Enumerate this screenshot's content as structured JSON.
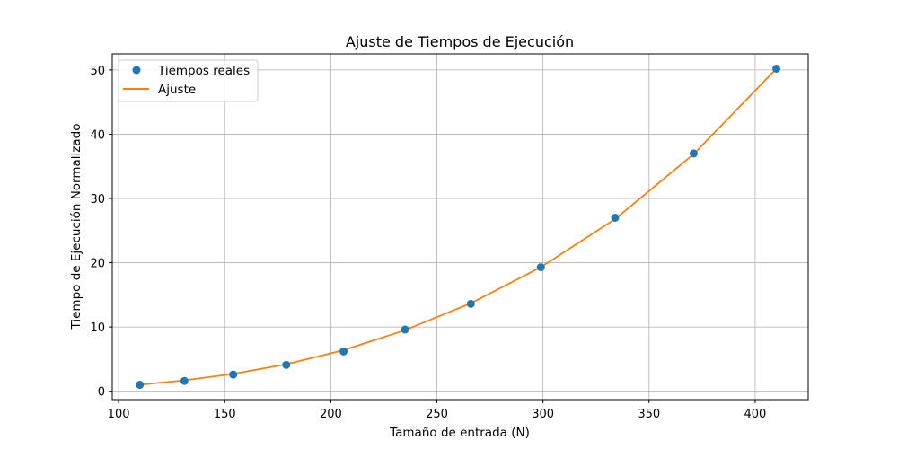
{
  "chart_data": {
    "type": "scatter",
    "title": "Ajuste de Tiempos de Ejecución",
    "xlabel": "Tamaño de entrada (N)",
    "ylabel": "Tiempo de Ejecución Normalizado",
    "xlim": [
      97,
      425
    ],
    "ylim": [
      -1.3,
      52.5
    ],
    "xticks": [
      100,
      150,
      200,
      250,
      300,
      350,
      400
    ],
    "yticks": [
      0,
      10,
      20,
      30,
      40,
      50
    ],
    "grid": true,
    "legend_position": "top-left",
    "series": [
      {
        "name": "Tiempos reales",
        "kind": "scatter",
        "color": "#1f77b4",
        "x": [
          110,
          131,
          154,
          179,
          206,
          235,
          266,
          299,
          334,
          371,
          410
        ],
        "y": [
          1.0,
          1.6,
          2.6,
          4.1,
          6.2,
          9.6,
          13.6,
          19.3,
          27.0,
          37.0,
          50.2
        ]
      },
      {
        "name": "Ajuste",
        "kind": "line",
        "color": "#ff7f0e",
        "x": [
          110,
          131,
          154,
          179,
          206,
          235,
          266,
          299,
          334,
          371,
          410
        ],
        "y": [
          1.0,
          1.7,
          2.7,
          4.2,
          6.4,
          9.5,
          13.7,
          19.3,
          26.8,
          36.9,
          50.2
        ]
      }
    ]
  }
}
